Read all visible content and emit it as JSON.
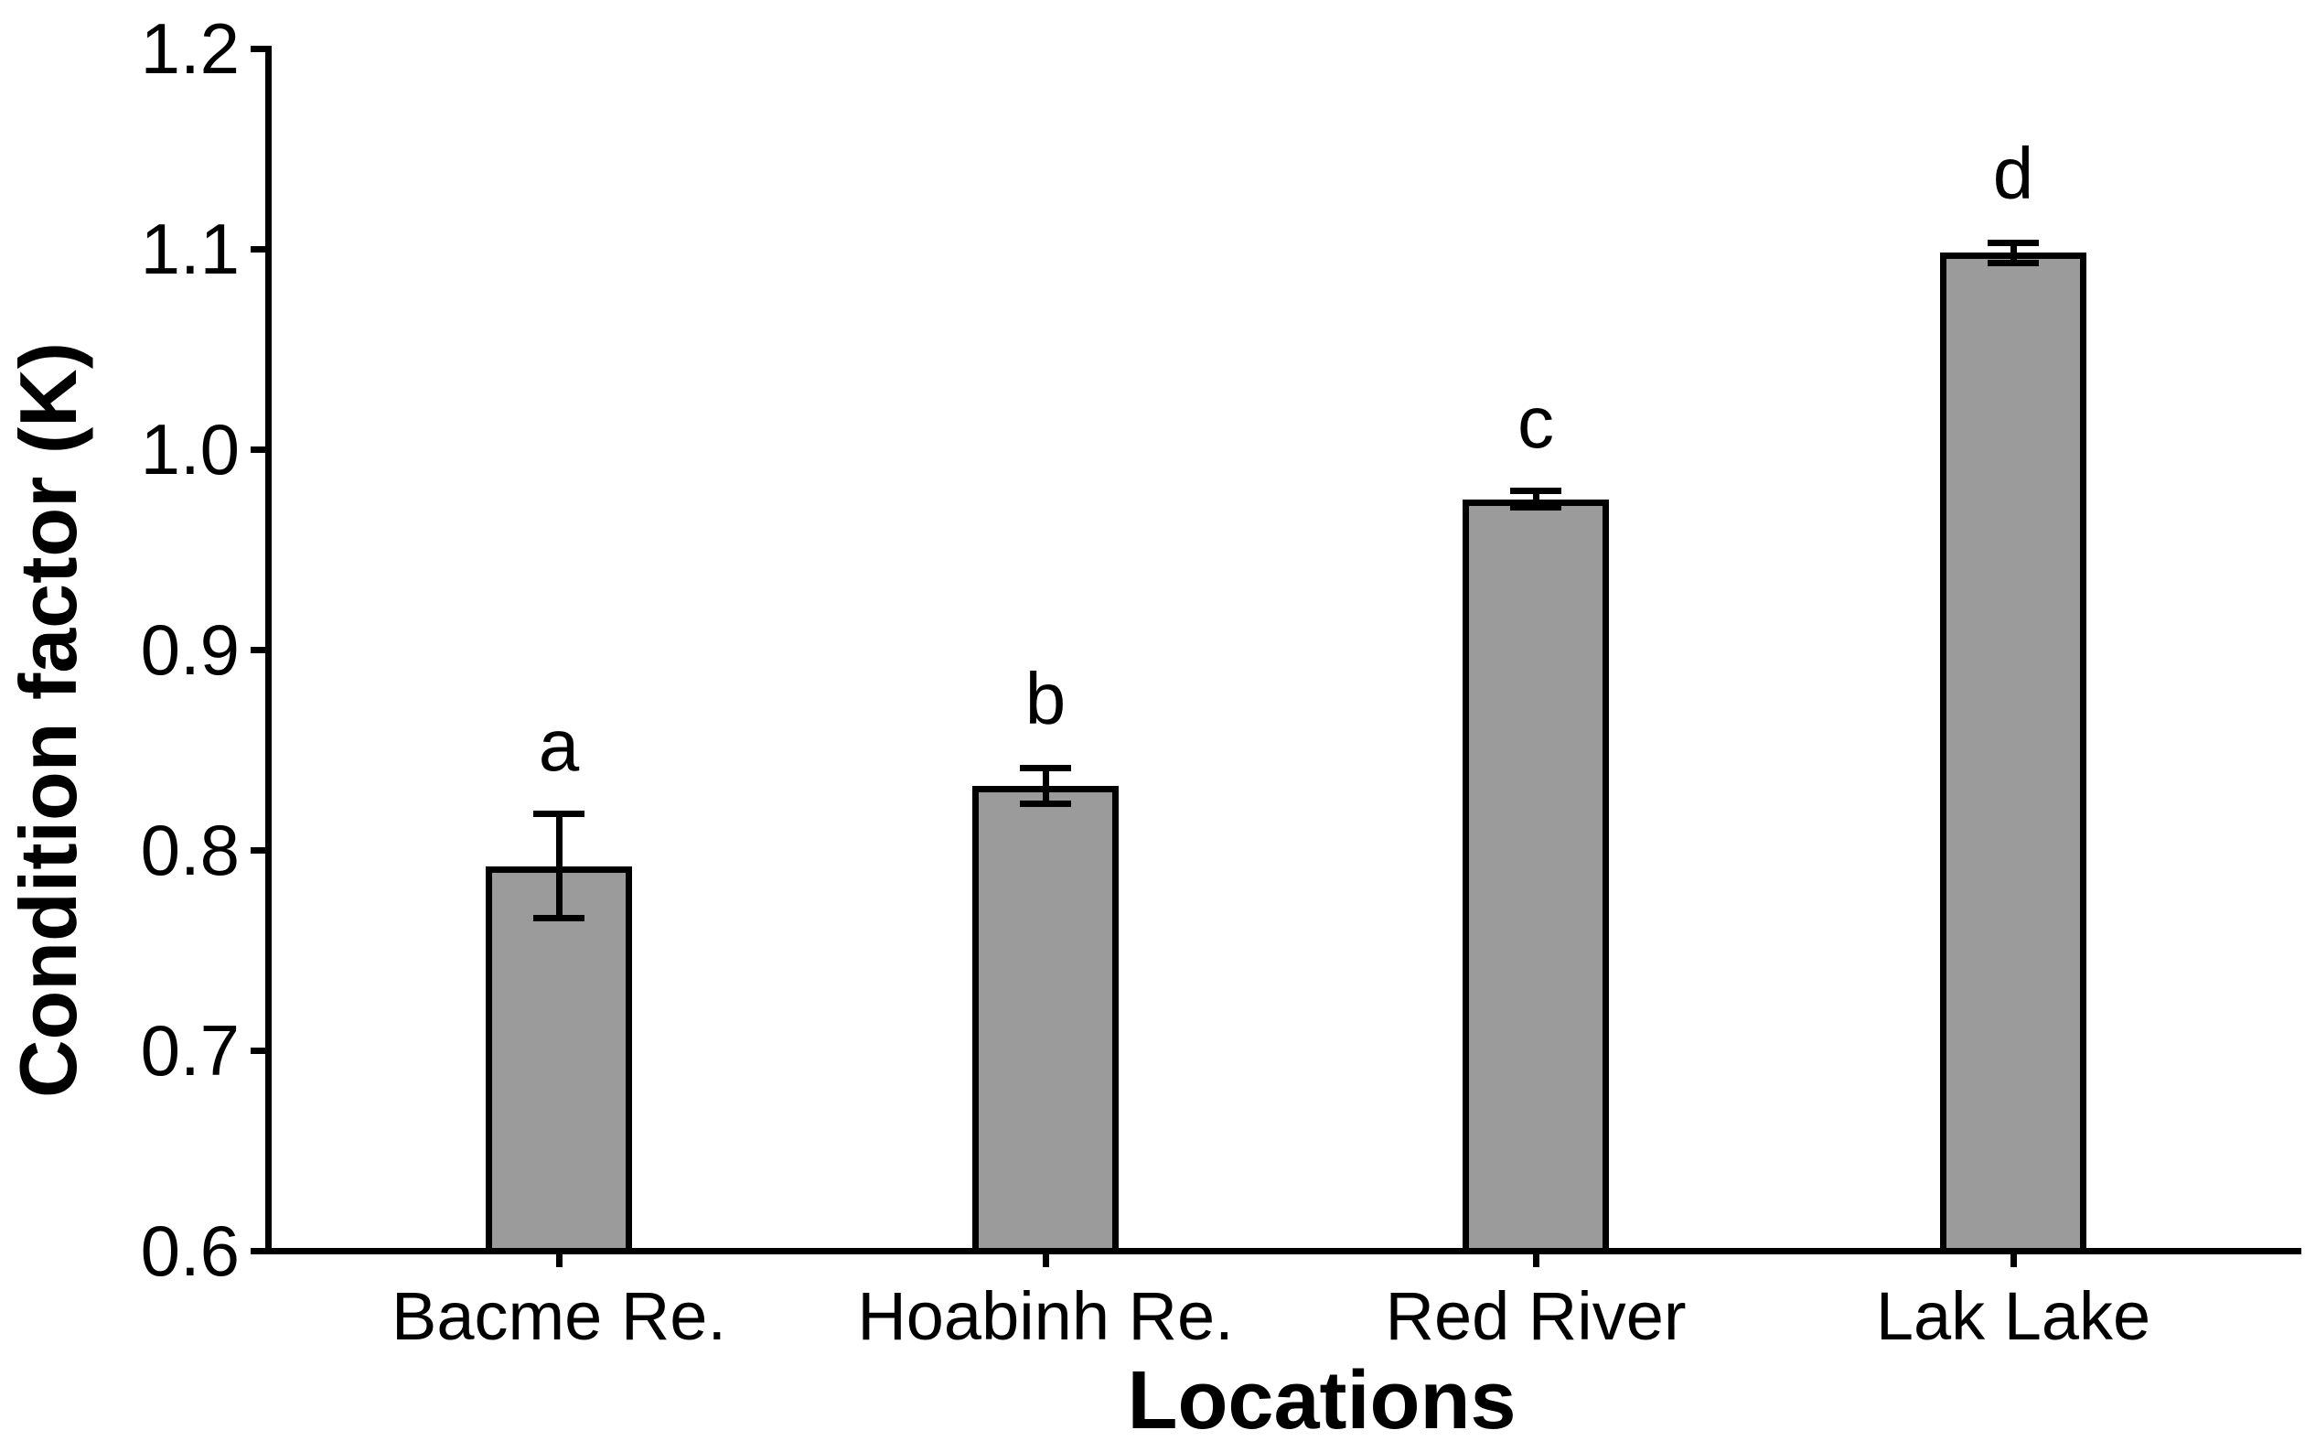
{
  "chart_data": {
    "type": "bar",
    "title": "",
    "xlabel": "Locations",
    "ylabel": "Condition factor (K)",
    "categories": [
      "Bacme Re.",
      "Hoabinh Re.",
      "Red River",
      "Lak Lake"
    ],
    "values": [
      0.792,
      0.832,
      0.975,
      1.098
    ],
    "error_bars": [
      0.026,
      0.009,
      0.004,
      0.005
    ],
    "significance_letters": [
      "a",
      "b",
      "c",
      "d"
    ],
    "ylim": [
      0.6,
      1.2
    ],
    "yticks": [
      0.6,
      0.7,
      0.8,
      0.9,
      1.0,
      1.1,
      1.2
    ],
    "ytick_labels": [
      "0.6",
      "0.7",
      "0.8",
      "0.9",
      "1.0",
      "1.1",
      "1.2"
    ],
    "grid": false,
    "legend": "none",
    "bar_fill_color": "#9b9b9b",
    "bar_border_color": "#000000",
    "axis_color": "#000000",
    "background_color": "#ffffff"
  }
}
